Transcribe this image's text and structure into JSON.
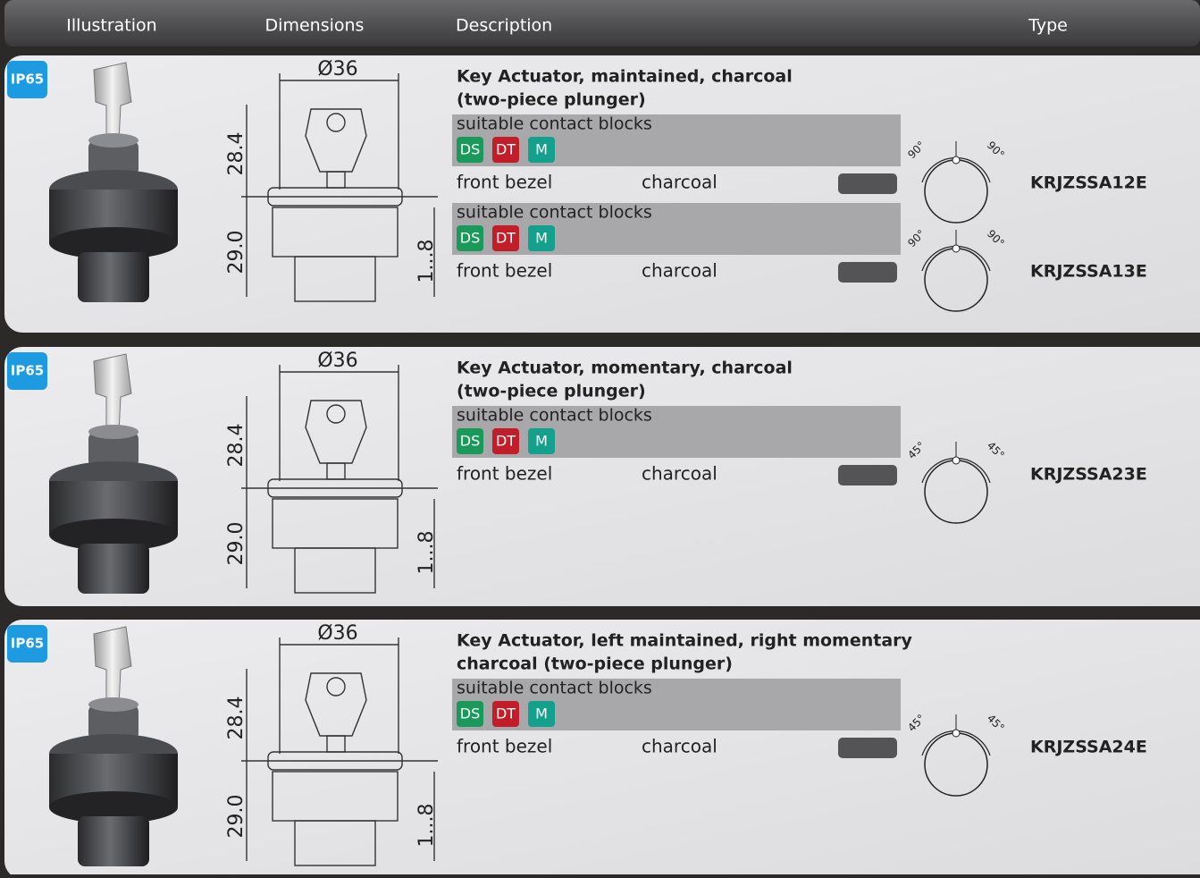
{
  "header": {
    "columns": [
      "Illustration",
      "Dimensions",
      "Description",
      "Type"
    ]
  },
  "products": [
    {
      "badge": "IP65",
      "dimensions": {
        "diameter": "Ø36",
        "upper": "28.4",
        "lower": "29.0",
        "travel": "1...8"
      },
      "title": [
        "Key Actuator, maintained, charcoal",
        "(two-piece plunger)"
      ],
      "variants": [
        {
          "contact_label": "suitable contact blocks",
          "contacts": [
            "DS",
            "DT",
            "M"
          ],
          "part": "front bezel",
          "color": "charcoal",
          "angles": [
            "90°",
            "90°"
          ],
          "type": "KRJZSSA12E"
        },
        {
          "contact_label": "suitable contact blocks",
          "contacts": [
            "DS",
            "DT",
            "M"
          ],
          "part": "front bezel",
          "color": "charcoal",
          "angles": [
            "90°",
            "90°"
          ],
          "type": "KRJZSSA13E"
        }
      ]
    },
    {
      "badge": "IP65",
      "dimensions": {
        "diameter": "Ø36",
        "upper": "28.4",
        "lower": "29.0",
        "travel": "1...8"
      },
      "title": [
        "Key Actuator, momentary, charcoal",
        "(two-piece plunger)"
      ],
      "variants": [
        {
          "contact_label": "suitable contact blocks",
          "contacts": [
            "DS",
            "DT",
            "M"
          ],
          "part": "front bezel",
          "color": "charcoal",
          "angles": [
            "45°",
            "45°"
          ],
          "type": "KRJZSSA23E"
        }
      ]
    },
    {
      "badge": "IP65",
      "dimensions": {
        "diameter": "Ø36",
        "upper": "28.4",
        "lower": "29.0",
        "travel": "1...8"
      },
      "title": [
        "Key Actuator, left maintained, right momentary",
        "charcoal (two-piece plunger)"
      ],
      "variants": [
        {
          "contact_label": "suitable contact blocks",
          "contacts": [
            "DS",
            "DT",
            "M"
          ],
          "part": "front bezel",
          "color": "charcoal",
          "angles": [
            "45°",
            "45°"
          ],
          "type": "KRJZSSA24E"
        }
      ]
    }
  ]
}
